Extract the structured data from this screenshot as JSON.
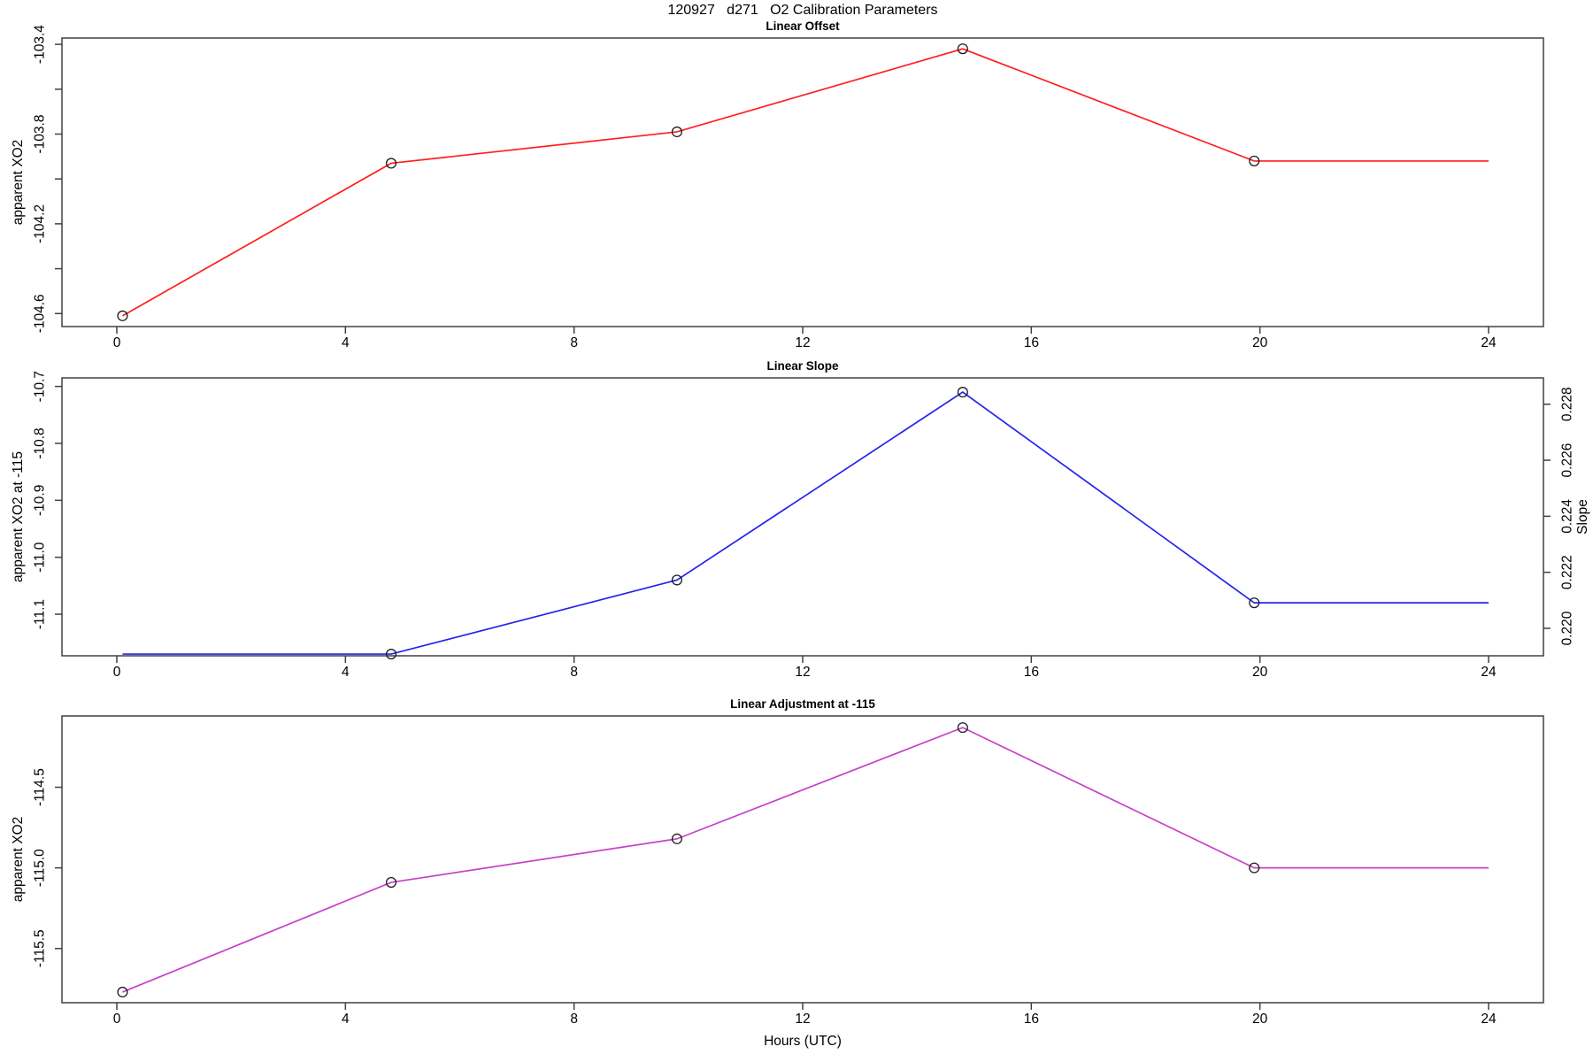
{
  "title": "120927   d271   O2 Calibration Parameters",
  "xlabel": "Hours (UTC)",
  "colors": {
    "offset_line": "#ff1f1f",
    "slope_line": "#2424ee",
    "adjustment_line": "#c840c8",
    "marker_stroke": "#1c1c1c",
    "axis": "#404040"
  },
  "chart_data": [
    {
      "type": "line",
      "title": "Linear Offset",
      "ylabel": "apparent XO2",
      "color": "#ff1f1f",
      "x": [
        0.1,
        4.8,
        9.8,
        14.8,
        19.9
      ],
      "y": [
        -104.61,
        -103.93,
        -103.79,
        -103.42,
        -103.92
      ],
      "extend_to_x": 24,
      "xlim": [
        -0.96,
        24.96
      ],
      "ylim": [
        -104.658,
        -103.372
      ],
      "xticks": {
        "values": [
          0,
          4,
          8,
          12,
          16,
          20,
          24
        ],
        "labels": [
          "0",
          "4",
          "8",
          "12",
          "16",
          "20",
          "24"
        ]
      },
      "yticks": {
        "values": [
          -103.4,
          -103.6,
          -103.8,
          -104.0,
          -104.2,
          -104.4,
          -104.6
        ],
        "labels": [
          "-103.4",
          "",
          "-103.8",
          "",
          "-104.2",
          "",
          "-104.6"
        ]
      },
      "line": {
        "x": [
          0.1,
          4.8,
          9.8,
          14.8,
          19.9,
          24
        ],
        "y": [
          -104.61,
          -103.93,
          -103.79,
          -103.42,
          -103.92,
          -103.92
        ]
      },
      "markers": {
        "x": [
          0.1,
          4.8,
          9.8,
          14.8,
          19.9
        ],
        "y": [
          -104.61,
          -103.93,
          -103.79,
          -103.42,
          -103.92
        ]
      }
    },
    {
      "type": "line",
      "title": "Linear Slope",
      "ylabel": "apparent XO2 at -115",
      "ylabel_right": "Slope",
      "color": "#2424ee",
      "x": [
        0.1,
        4.8,
        9.8,
        14.8,
        19.9
      ],
      "y_left_xo2_at_115": [
        -11.17,
        -11.17,
        -11.04,
        -10.71,
        -11.08
      ],
      "y_right_slope": [
        0.2191,
        0.2191,
        0.2218,
        0.2286,
        0.221
      ],
      "extend_to_x": 24,
      "xlim": [
        -0.96,
        24.96
      ],
      "ylim": [
        -11.173,
        -10.685
      ],
      "ylim_right": [
        0.21902,
        0.22894
      ],
      "xticks": {
        "values": [
          0,
          4,
          8,
          12,
          16,
          20,
          24
        ],
        "labels": [
          "0",
          "4",
          "8",
          "12",
          "16",
          "20",
          "24"
        ]
      },
      "yticks": {
        "values": [
          -10.7,
          -10.8,
          -10.9,
          -11.0,
          -11.1
        ],
        "labels": [
          "-10.7",
          "-10.8",
          "-10.9",
          "-11.0",
          "-11.1"
        ]
      },
      "yticks_right": {
        "values": [
          0.22,
          0.222,
          0.224,
          0.226,
          0.228
        ],
        "labels": [
          "0.220",
          "0.222",
          "0.224",
          "0.226",
          "0.228"
        ]
      },
      "line": {
        "x": [
          0.1,
          4.8,
          9.8,
          14.8,
          19.9,
          24
        ],
        "y": [
          -11.17,
          -11.17,
          -11.04,
          -10.71,
          -11.08,
          -11.08
        ]
      },
      "markers": {
        "x": [
          4.8,
          9.8,
          14.8,
          19.9
        ],
        "y": [
          -11.17,
          -11.04,
          -10.71,
          -11.08
        ]
      }
    },
    {
      "type": "line",
      "title": "Linear Adjustment at -115",
      "ylabel": "apparent XO2",
      "color": "#c840c8",
      "x": [
        0.1,
        4.8,
        9.8,
        14.8,
        19.9
      ],
      "y": [
        -115.77,
        -115.09,
        -114.82,
        -114.13,
        -115.0
      ],
      "extend_to_x": 24,
      "xlim": [
        -0.96,
        24.96
      ],
      "ylim": [
        -115.836,
        -114.058
      ],
      "xticks": {
        "values": [
          0,
          4,
          8,
          12,
          16,
          20,
          24
        ],
        "labels": [
          "0",
          "4",
          "8",
          "12",
          "16",
          "20",
          "24"
        ]
      },
      "yticks": {
        "values": [
          -114.5,
          -115.0,
          -115.5
        ],
        "labels": [
          "-114.5",
          "-115.0",
          "-115.5"
        ]
      },
      "line": {
        "x": [
          0.1,
          4.8,
          9.8,
          14.8,
          19.9,
          24
        ],
        "y": [
          -115.77,
          -115.09,
          -114.82,
          -114.13,
          -115.0,
          -115.0
        ]
      },
      "markers": {
        "x": [
          0.1,
          4.8,
          9.8,
          14.8,
          19.9
        ],
        "y": [
          -115.77,
          -115.09,
          -114.82,
          -114.13,
          -115.0
        ]
      }
    }
  ]
}
